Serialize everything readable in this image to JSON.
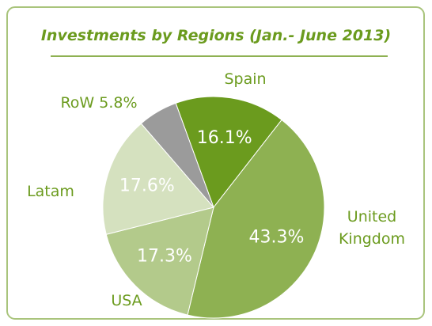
{
  "chart_data": {
    "type": "pie",
    "title": "Investments by Regions (Jan.- June 2013)",
    "categories": [
      "Spain",
      "United Kingdom",
      "USA",
      "Latam",
      "RoW"
    ],
    "values": [
      16.1,
      43.3,
      17.3,
      17.6,
      5.8
    ],
    "value_labels": [
      "16.1%",
      "43.3%",
      "17.3%",
      "17.6%",
      "5.8%"
    ],
    "colors": [
      "#6b9b1e",
      "#8eb152",
      "#b3ca8b",
      "#d5e1bf",
      "#9b9b9b"
    ]
  }
}
